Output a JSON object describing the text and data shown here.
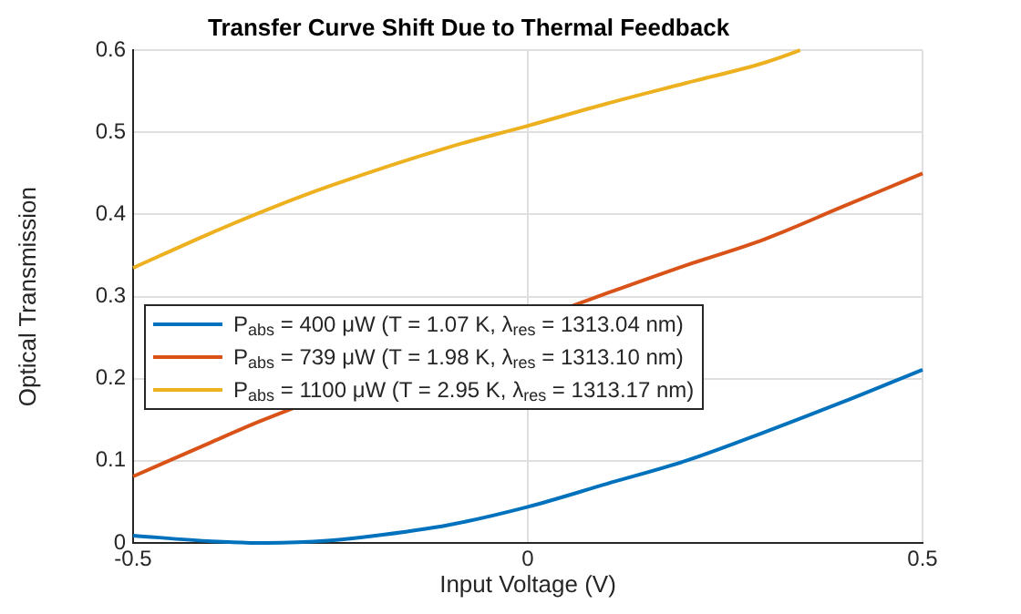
{
  "chart_data": {
    "type": "line",
    "title": "Transfer Curve Shift Due to Thermal Feedback",
    "xlabel": "Input Voltage (V)",
    "ylabel": "Optical Transmission",
    "xlim": [
      -0.5,
      0.5
    ],
    "xticks": [
      -0.5,
      0,
      0.5
    ],
    "ylim": [
      0,
      0.6
    ],
    "yticks": [
      0,
      0.1,
      0.2,
      0.3,
      0.4,
      0.5,
      0.6
    ],
    "grid": true,
    "legend": "left",
    "marker": "none",
    "line_style": "solid",
    "series": [
      {
        "name": "P$_{abs}$ = 400 μW (T = 1.07 K, λ$_{res}$ = 1313.04 nm)",
        "color": "#0072bd",
        "x": [
          -0.5,
          -0.4,
          -0.33,
          -0.25,
          -0.2,
          -0.1,
          0,
          0.1,
          0.2,
          0.3,
          0.4,
          0.5
        ],
        "values": [
          0.009,
          0.002,
          0.0,
          0.003,
          0.008,
          0.022,
          0.044,
          0.072,
          0.1,
          0.135,
          0.172,
          0.211
        ]
      },
      {
        "name": "P$_{abs}$ = 739 μW (T = 1.98 K, λ$_{res}$ = 1313.10 nm)",
        "color": "#d95319",
        "x": [
          -0.5,
          -0.4,
          -0.34,
          0.06,
          0.1,
          0.2,
          0.3,
          0.4,
          0.5
        ],
        "values": [
          0.081,
          0.123,
          0.148,
          0.29,
          0.304,
          0.338,
          0.37,
          0.41,
          0.45
        ]
      },
      {
        "name": "P$_{abs}$ = 1100 μW (T = 2.95 K, λ$_{res}$ = 1313.17 nm)",
        "color": "#edb120",
        "x": [
          -0.5,
          -0.4,
          -0.33,
          -0.25,
          -0.1,
          0,
          0.1,
          0.2,
          0.3,
          0.345
        ],
        "values": [
          0.335,
          0.378,
          0.406,
          0.435,
          0.482,
          0.508,
          0.535,
          0.56,
          0.585,
          0.6
        ]
      }
    ]
  }
}
